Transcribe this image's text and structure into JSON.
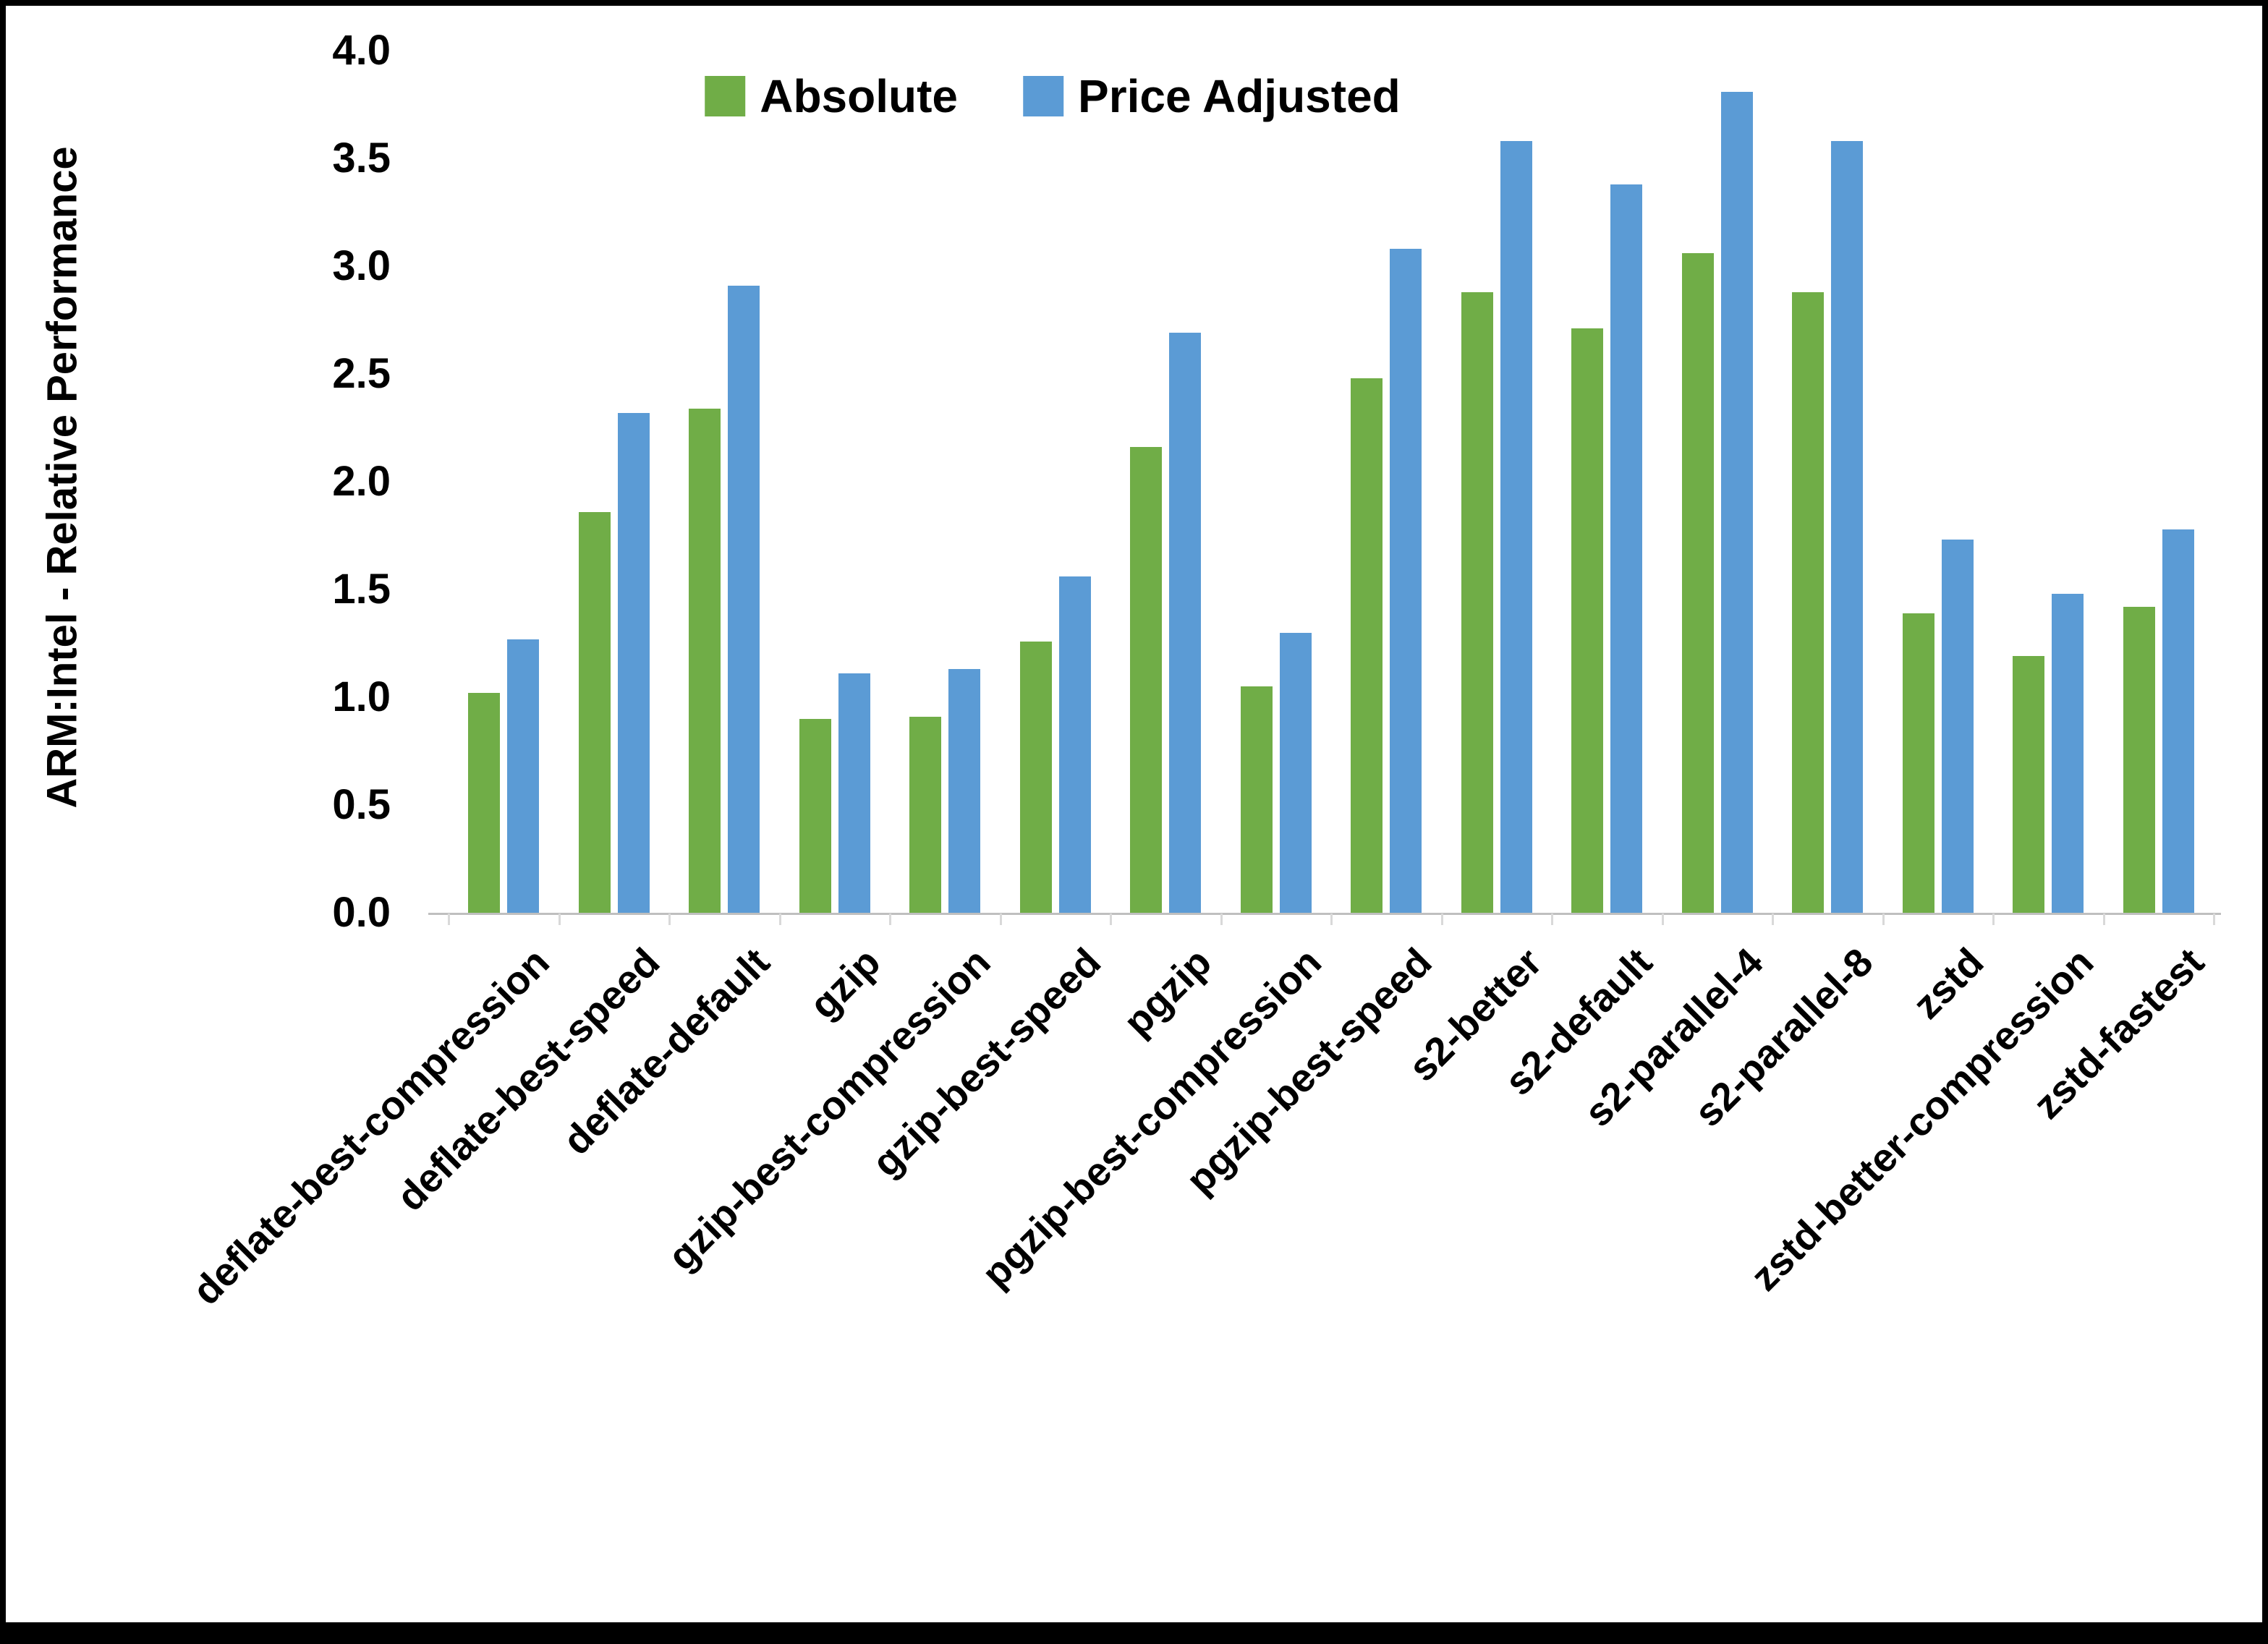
{
  "chart_data": {
    "type": "bar",
    "title": "",
    "xlabel": "",
    "ylabel": "ARM:Intel - Relative Performance",
    "ylim": [
      0,
      4.0
    ],
    "ytick_step": 0.5,
    "grid": false,
    "legend_position": "top-center",
    "axis_line_color": "#BFBFBF",
    "categories": [
      "deflate-best-compression",
      "deflate-best-speed",
      "deflate-default",
      "gzip",
      "gzip-best-compression",
      "gzip-best-speed",
      "pgzip",
      "pgzip-best-compression",
      "pgzip-best-speed",
      "s2-better",
      "s2-default",
      "s2-parallel-4",
      "s2-parallel-8",
      "zstd",
      "zstd-better-compression",
      "zstd-fastest"
    ],
    "series": [
      {
        "name": "Absolute",
        "color": "#70AD47",
        "values": [
          1.02,
          1.86,
          2.34,
          0.9,
          0.91,
          1.26,
          2.16,
          1.05,
          2.48,
          2.88,
          2.71,
          3.06,
          2.88,
          1.39,
          1.19,
          1.42
        ]
      },
      {
        "name": "Price Adjusted",
        "color": "#5B9BD5",
        "values": [
          1.27,
          2.32,
          2.91,
          1.11,
          1.13,
          1.56,
          2.69,
          1.3,
          3.08,
          3.58,
          3.38,
          3.81,
          3.58,
          1.73,
          1.48,
          1.78
        ]
      }
    ]
  }
}
